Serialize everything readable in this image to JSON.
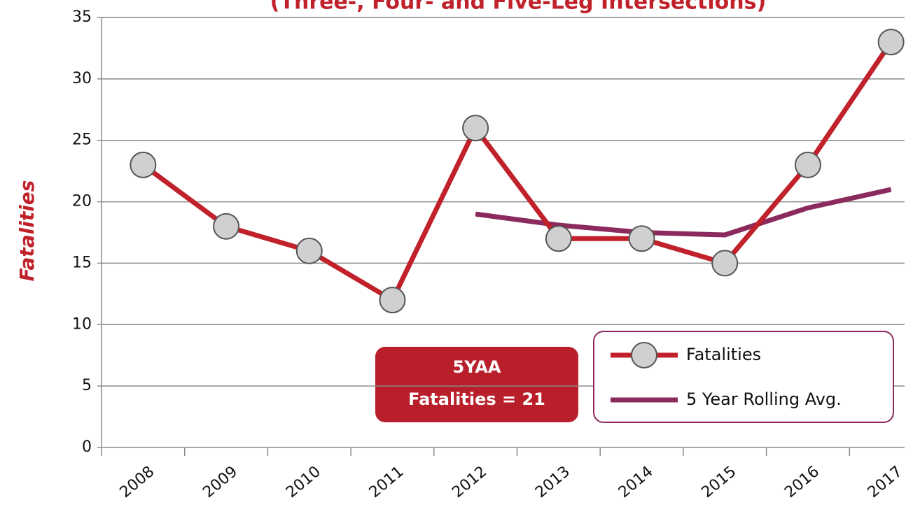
{
  "chart_data": {
    "type": "line",
    "title": "(Three-, Four- and Five-Leg Intersections)",
    "y_label": "Fatalities",
    "categories": [
      "2008",
      "2009",
      "2010",
      "2011",
      "2012",
      "2013",
      "2014",
      "2015",
      "2016",
      "2017"
    ],
    "series": [
      {
        "name": "Fatalities",
        "color": "#c0212a",
        "values": [
          23,
          18,
          16,
          12,
          26,
          17,
          17,
          15,
          23,
          33
        ]
      },
      {
        "name": "5 Year Rolling Avg.",
        "color": "#8b2a5c",
        "values": [
          null,
          null,
          null,
          null,
          19,
          18.1,
          17.5,
          17.3,
          19.5,
          21
        ]
      }
    ],
    "ylim": [
      0,
      35
    ],
    "yticks": [
      0,
      5,
      10,
      15,
      20,
      25,
      30,
      35
    ],
    "grid": true,
    "annotation": [
      "5YAA",
      "Fatalities = 21"
    ],
    "legend": "bottom-right"
  }
}
